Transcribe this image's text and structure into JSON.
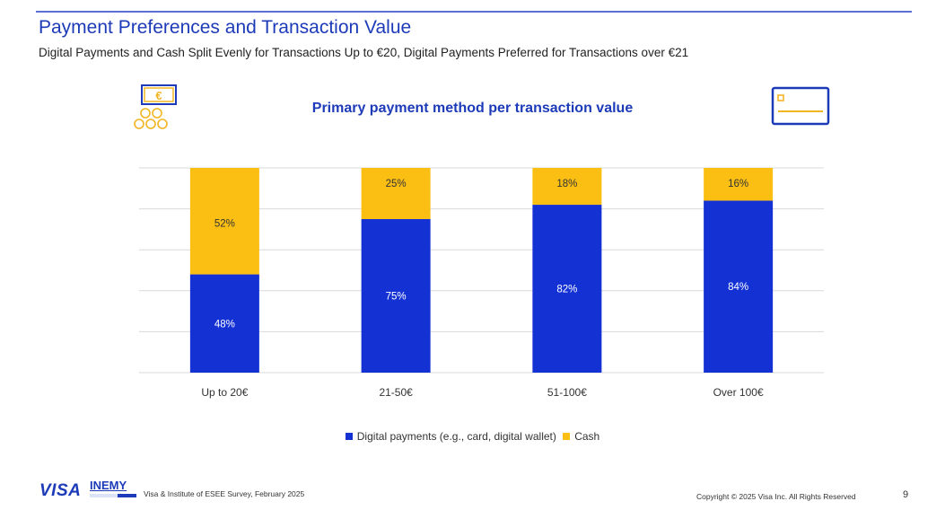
{
  "header": {
    "title": "Payment Preferences and Transaction Value",
    "subtitle": "Digital Payments and Cash Split Evenly for Transactions Up to €20, Digital Payments Preferred for Transactions over €21"
  },
  "icons": {
    "left": "cash-coins-icon",
    "right": "credit-card-icon",
    "left_symbol": "€"
  },
  "chart_data": {
    "type": "bar",
    "stacked": true,
    "title": "Primary payment method per transaction value",
    "categories": [
      "Up to 20€",
      "21-50€",
      "51-100€",
      "Over 100€"
    ],
    "series": [
      {
        "name": "Digital payments (e.g., card, digital wallet)",
        "values": [
          48,
          75,
          82,
          84
        ],
        "color": "#1432d4"
      },
      {
        "name": "Cash",
        "values": [
          52,
          25,
          18,
          16
        ],
        "color": "#fbbf14"
      }
    ],
    "value_labels": [
      [
        "48%",
        "75%",
        "82%",
        "84%"
      ],
      [
        "52%",
        "25%",
        "18%",
        "16%"
      ]
    ],
    "ylim": [
      0,
      100
    ],
    "grid": true,
    "legend_position": "bottom",
    "xlabel": "",
    "ylabel": ""
  },
  "footer": {
    "logo_visa": "VISA",
    "logo_inemy": "INEMY",
    "source": "Visa & Institute of ESEE Survey, February 2025",
    "copyright": "Copyright © 2025 Visa Inc. All Rights Reserved",
    "page_number": "9"
  }
}
